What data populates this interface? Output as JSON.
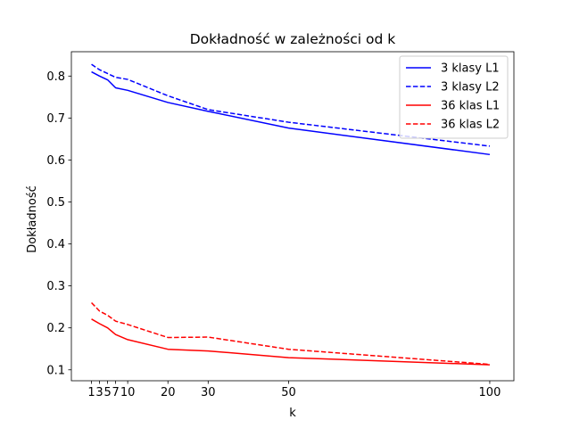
{
  "chart_data": {
    "type": "line",
    "title": "Dokładność w zależności od k",
    "xlabel": "k",
    "ylabel": "Dokładność",
    "x": [
      1,
      3,
      5,
      7,
      10,
      20,
      30,
      50,
      100
    ],
    "xticks": [
      "1",
      "3",
      "5",
      "7",
      "10",
      "20",
      "30",
      "50",
      "100"
    ],
    "yticks": [
      "0.1",
      "0.2",
      "0.3",
      "0.4",
      "0.5",
      "0.6",
      "0.7",
      "0.8"
    ],
    "xlim": [
      -4.0,
      106.0
    ],
    "ylim": [
      0.074,
      0.858
    ],
    "grid": false,
    "legend_position": "top-right",
    "series": [
      {
        "name": "3 klasy L1",
        "color": "#0000ff",
        "style": "solid",
        "values": [
          0.81,
          0.8,
          0.791,
          0.772,
          0.766,
          0.737,
          0.716,
          0.676,
          0.613
        ]
      },
      {
        "name": "3 klasy L2",
        "color": "#0000ff",
        "style": "dashed",
        "values": [
          0.828,
          0.815,
          0.806,
          0.797,
          0.792,
          0.753,
          0.72,
          0.69,
          0.633
        ]
      },
      {
        "name": "36 klas L1",
        "color": "#ff0000",
        "style": "solid",
        "values": [
          0.221,
          0.21,
          0.2,
          0.184,
          0.172,
          0.149,
          0.145,
          0.129,
          0.112
        ]
      },
      {
        "name": "36 klas L2",
        "color": "#ff0000",
        "style": "dashed",
        "values": [
          0.26,
          0.24,
          0.23,
          0.216,
          0.208,
          0.177,
          0.178,
          0.149,
          0.113
        ]
      }
    ]
  }
}
